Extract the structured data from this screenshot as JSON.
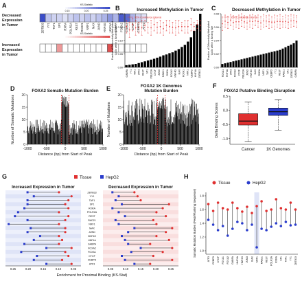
{
  "colors": {
    "tissue": "#e03030",
    "hepg2": "#2a3ccc",
    "bar": "#000000",
    "ci": "#e03030",
    "blue_bg": "#dfe4f7",
    "red_bg": "#f9dede",
    "heat_blue": "#3a4cc8",
    "heat_red": "#e05050"
  },
  "panels": {
    "A": {
      "letter": "A",
      "row1_label": [
        "Decreased",
        "Expression",
        "in Tumor"
      ],
      "row2_label": [
        "Increased",
        "Expression",
        "in Tumor"
      ],
      "colorbar_title": "KS-Statistic",
      "colorbar_ticks": [
        "0.15",
        "0.20",
        "0.25"
      ],
      "colorbar2_title": "KS-Statistic",
      "genes": [
        "ZBTB33",
        "YY1",
        "TAF1",
        "SP1",
        "RXRA",
        "POLR2A",
        "REST",
        "RAD21",
        "NRF1",
        "MAX",
        "JUND",
        "HNF4G",
        "HNF4A",
        "GABPA",
        "FOXA2",
        "FOXA1",
        "CTCF",
        "CEBPD",
        "ATF3"
      ]
    },
    "B": {
      "letter": "B",
      "title": "Increased Methylation in Tumor",
      "legend": "95% Confidence Interval",
      "ylabel": [
        "Fraction of Differentially Methylated",
        "CpGs within a Binding Site"
      ],
      "yticks": [
        "0.00",
        "0.05",
        "0.10",
        "0.15",
        "0.20"
      ]
    },
    "C": {
      "letter": "C",
      "title": "Decreased Methylation in Tumor",
      "legend": "95% Confidence Interval",
      "ylabel": [
        "Fraction of Differentially Methylated",
        "CpGs within a Binding Site"
      ],
      "yticks": [
        "0.00",
        "0.02",
        "0.04",
        "0.06",
        "0.08"
      ]
    },
    "D": {
      "letter": "D",
      "title": "FOXA2 Somatic Mutation Burden",
      "ylabel": "Number of Somatic Mutations",
      "xlabel": "Distance (bp) from Start of Peak",
      "yticks": [
        "0",
        "5",
        "10",
        "15",
        "20"
      ],
      "xticks": [
        "-1000",
        "-500",
        "0",
        "500",
        "1000"
      ]
    },
    "E": {
      "letter": "E",
      "title": [
        "FOXA2 1K Genomes",
        "Mutation Burden"
      ],
      "ylabel": "Number of Mutations",
      "xlabel": "Distance (bp) from Start of Peak",
      "yticks": [
        "0",
        "5",
        "10",
        "15",
        "20"
      ],
      "xticks": [
        "-1000",
        "-500",
        "0",
        "500",
        "1000"
      ]
    },
    "F": {
      "letter": "F",
      "title": "FOXA2 Putative Binding Disruption",
      "ylabel": "Delta Binding Scores",
      "yticks": [
        "0.5",
        "0.0",
        "-0.5",
        "-1.0"
      ],
      "categories": [
        "Cancer",
        "1K Genomes"
      ]
    },
    "G": {
      "letter": "G",
      "legend_tissue": "Tissue",
      "legend_hepg2": "HepG2",
      "left_title": "Increased Expression in Tumor",
      "right_title": "Decreased Expression in Tumor",
      "xlabel": "Enrichment for Proximal Binding (KS-Stat)",
      "left_xticks": [
        "0.25",
        "0.20",
        "0.15",
        "0.10",
        "0.05"
      ],
      "right_xticks": [
        "0.05",
        "0.10",
        "0.15",
        "0.20",
        "0.25"
      ]
    },
    "H": {
      "letter": "H",
      "legend_tissue": "Tissue",
      "legend_hepg2": "HepG2",
      "ylabel": [
        "Somatic Mutation Burden (Peak/Flanking Sequence)"
      ],
      "yticks": [
        "1.0",
        "1.2",
        "1.4",
        "1.6",
        "1.8"
      ]
    }
  },
  "chart_data": [
    {
      "type": "heatmap",
      "panel": "A",
      "rows": [
        "Decreased Expression in Tumor",
        "Increased Expression in Tumor"
      ],
      "columns": [
        "ZBTB33",
        "YY1",
        "TAF1",
        "SP1",
        "RXRA",
        "POLR2A",
        "REST",
        "RAD21",
        "NRF1",
        "MAX",
        "JUND",
        "HNF4G",
        "HNF4A",
        "GABPA",
        "FOXA2",
        "FOXA1",
        "CTCF",
        "CEBPD",
        "ATF3"
      ],
      "decreased": [
        0.25,
        0.17,
        0.16,
        0.16,
        0.15,
        0.16,
        0.17,
        0.16,
        0.17,
        0.16,
        0.17,
        0.18,
        0.2,
        0.18,
        0.24,
        0.23,
        0.18,
        0.16,
        0.15
      ],
      "increased": [
        0.0,
        0.0,
        0.0,
        0.2,
        0.0,
        0.0,
        0.0,
        0.0,
        0.0,
        0.0,
        0.0,
        0.0,
        0.25,
        0.0,
        0.0,
        0.0,
        0.0,
        0.0,
        0.0
      ]
    },
    {
      "type": "bar",
      "panel": "B",
      "values": [
        0.01,
        0.012,
        0.014,
        0.016,
        0.02,
        0.024,
        0.028,
        0.032,
        0.036,
        0.04,
        0.045,
        0.05,
        0.056,
        0.06,
        0.066,
        0.07,
        0.078,
        0.085,
        0.095,
        0.105,
        0.12,
        0.14,
        0.17,
        0.2,
        0.25
      ],
      "ci_low": [
        0.16,
        0.14,
        0.17,
        0.15,
        0.16,
        0.15,
        0.17,
        0.16,
        0.15,
        0.17,
        0.16,
        0.16,
        0.15,
        0.17,
        0.16,
        0.16,
        0.15,
        0.16,
        0.17,
        0.16,
        0.16,
        0.17,
        0.17,
        0.18,
        0.17
      ],
      "ci_high": [
        0.22,
        0.21,
        0.23,
        0.22,
        0.21,
        0.22,
        0.22,
        0.21,
        0.22,
        0.23,
        0.21,
        0.22,
        0.21,
        0.22,
        0.22,
        0.21,
        0.22,
        0.22,
        0.21,
        0.22,
        0.22,
        0.23,
        0.21,
        0.22,
        0.22
      ],
      "categories_visible": [
        "GABPA",
        "YY1",
        "TAF1",
        "ATF3",
        "REST",
        "SP1",
        "POLR2A",
        "CTCF",
        "JUND",
        "RAD21",
        "RXRA",
        "FOXA2",
        "HNF4G",
        "MAX",
        "FOXA1",
        "NRF1",
        "CEBPD",
        "HNF4A",
        "ZBTB33"
      ],
      "ylim": [
        0,
        0.25
      ]
    },
    {
      "type": "bar",
      "panel": "C",
      "values": [
        0.005,
        0.006,
        0.007,
        0.008,
        0.009,
        0.01,
        0.011,
        0.012,
        0.013,
        0.014,
        0.015,
        0.016,
        0.017,
        0.018,
        0.019,
        0.02,
        0.021,
        0.022,
        0.023,
        0.024,
        0.025,
        0.026,
        0.028,
        0.03,
        0.032,
        0.034,
        0.036,
        0.04
      ],
      "ci_low": [
        0.055,
        0.06,
        0.058,
        0.062,
        0.057,
        0.06,
        0.058,
        0.061,
        0.059,
        0.057,
        0.06,
        0.058,
        0.062,
        0.059,
        0.057,
        0.06,
        0.061,
        0.058,
        0.059,
        0.057,
        0.06,
        0.058,
        0.06,
        0.059,
        0.058,
        0.06,
        0.061,
        0.059
      ],
      "ci_high": [
        0.075,
        0.078,
        0.076,
        0.079,
        0.077,
        0.076,
        0.078,
        0.08,
        0.077,
        0.076,
        0.078,
        0.079,
        0.077,
        0.078,
        0.076,
        0.079,
        0.077,
        0.078,
        0.076,
        0.078,
        0.077,
        0.079,
        0.076,
        0.078,
        0.077,
        0.079,
        0.078,
        0.077
      ],
      "categories_visible": [
        "FOXA1",
        "HNF4A",
        "ATF3",
        "FOXA2",
        "CTCF",
        "POLR2A",
        "JUND",
        "HNF4G",
        "MAX",
        "RXRA",
        "NRF1",
        "TAF1",
        "CEBPD",
        "YY1",
        "REST",
        "RAD21",
        "SP1",
        "ZBTB33",
        "GABPA"
      ],
      "ylim": [
        0,
        0.08
      ]
    },
    {
      "type": "bar",
      "panel": "D",
      "xlim": [
        -1000,
        1000
      ],
      "ylim": [
        0,
        20
      ],
      "baseline_mean": 7,
      "peak_window": [
        -100,
        100
      ],
      "peak_max": 20
    },
    {
      "type": "bar",
      "panel": "E",
      "xlim": [
        -1000,
        1000
      ],
      "ylim": [
        0,
        20
      ],
      "baseline_mean": 13,
      "peak_window": [
        -100,
        100
      ],
      "peak_max": 19
    },
    {
      "type": "box",
      "panel": "F",
      "categories": [
        "Cancer",
        "1K Genomes"
      ],
      "boxes": [
        {
          "name": "Cancer",
          "whisker_low": -1.1,
          "q1": -0.52,
          "median": -0.38,
          "q3": -0.12,
          "whisker_high": 0.3
        },
        {
          "name": "1K Genomes",
          "whisker_low": -0.7,
          "q1": -0.18,
          "median": -0.05,
          "q3": 0.08,
          "whisker_high": 0.38
        }
      ],
      "ylim": [
        -1.2,
        0.5
      ]
    },
    {
      "type": "dumbbell",
      "panel": "G-left",
      "title": "Increased Expression in Tumor",
      "categories": [
        "ZBTB33",
        "YY1",
        "TAF1",
        "SP1",
        "RXRA",
        "POLR2A",
        "REST",
        "RAD21",
        "NRF1",
        "MAX",
        "JUND",
        "HNF4G",
        "HNF4A",
        "GABPA",
        "FOXA2",
        "FOXA1",
        "CTCF",
        "CEBPD",
        "ATF3"
      ],
      "tissue": [
        0.1,
        0.06,
        0.07,
        0.08,
        0.07,
        0.1,
        0.07,
        0.08,
        0.1,
        0.08,
        0.08,
        0.1,
        0.09,
        0.1,
        0.06,
        0.08,
        0.07,
        0.09,
        0.06
      ],
      "hepg2": [
        0.2,
        0.18,
        0.2,
        0.2,
        0.21,
        0.23,
        0.24,
        0.2,
        0.26,
        0.19,
        0.2,
        0.16,
        0.18,
        0.21,
        0.14,
        0.22,
        0.17,
        0.18,
        0.14
      ],
      "xlim": [
        0.27,
        0.03
      ]
    },
    {
      "type": "dumbbell",
      "panel": "G-right",
      "title": "Decreased Expression in Tumor",
      "categories": [
        "ZBTB33",
        "YY1",
        "TAF1",
        "SP1",
        "RXRA",
        "POLR2A",
        "REST",
        "RAD21",
        "NRF1",
        "MAX",
        "JUND",
        "HNF4G",
        "HNF4A",
        "GABPA",
        "FOXA2",
        "FOXA1",
        "CTCF",
        "CEBPD",
        "ATF3"
      ],
      "tissue": [
        0.13,
        0.14,
        0.15,
        0.24,
        0.22,
        0.2,
        0.23,
        0.19,
        0.2,
        0.25,
        0.23,
        0.2,
        0.24,
        0.18,
        0.25,
        0.22,
        0.19,
        0.25,
        0.18
      ],
      "hepg2": [
        0.06,
        0.08,
        0.07,
        0.09,
        0.06,
        0.08,
        0.1,
        0.07,
        0.08,
        0.13,
        0.11,
        0.09,
        0.1,
        0.11,
        0.15,
        0.12,
        0.09,
        0.1,
        0.13
      ],
      "xlim": [
        0.03,
        0.27
      ]
    },
    {
      "type": "dumbbell",
      "panel": "H",
      "categories": [
        "ATF3",
        "CEBPD",
        "CTCF",
        "FOXA1",
        "FOXA2",
        "GABPA",
        "HNF4A",
        "HNF4G",
        "JUND",
        "MAX",
        "NRF1",
        "RAD21",
        "REST",
        "POLR2A",
        "RXRA",
        "SP1",
        "TAF1",
        "YY1",
        "ZBTB33"
      ],
      "tissue": [
        1.68,
        1.58,
        1.7,
        1.62,
        1.6,
        1.7,
        1.62,
        1.57,
        1.64,
        1.55,
        1.65,
        1.72,
        1.58,
        1.6,
        1.75,
        1.62,
        1.6,
        1.7,
        1.6
      ],
      "hepg2": [
        1.45,
        1.38,
        1.3,
        1.36,
        1.22,
        1.32,
        1.42,
        1.4,
        1.3,
        1.38,
        1.05,
        1.32,
        1.3,
        1.35,
        1.4,
        1.36,
        1.42,
        1.37,
        1.38
      ],
      "ylim": [
        0.95,
        1.85
      ]
    }
  ]
}
